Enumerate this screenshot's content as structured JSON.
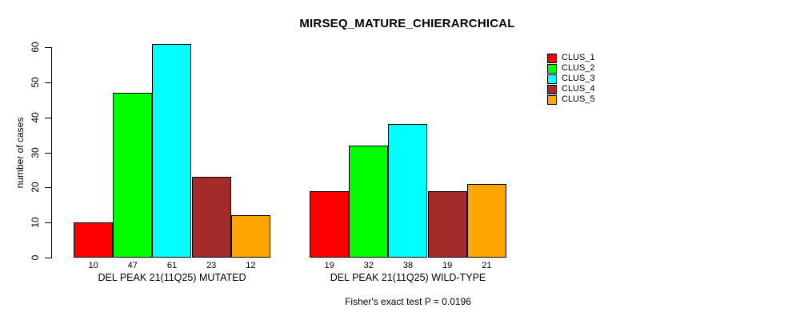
{
  "chart_data": {
    "type": "bar",
    "title": "MIRSEQ_MATURE_CHIERARCHICAL",
    "ylabel": "number of cases",
    "xlabel": "",
    "categories": [
      "DEL PEAK 21(11Q25) MUTATED",
      "DEL PEAK 21(11Q25) WILD-TYPE"
    ],
    "series": [
      {
        "name": "CLUS_1",
        "color": "#ff0000",
        "values": [
          10,
          19
        ]
      },
      {
        "name": "CLUS_2",
        "color": "#00ff00",
        "values": [
          47,
          32
        ]
      },
      {
        "name": "CLUS_3",
        "color": "#00ffff",
        "values": [
          61,
          38
        ]
      },
      {
        "name": "CLUS_4",
        "color": "#a52a2a",
        "values": [
          23,
          19
        ]
      },
      {
        "name": "CLUS_5",
        "color": "#ffa500",
        "values": [
          12,
          21
        ]
      }
    ],
    "yticks": [
      0,
      10,
      20,
      30,
      40,
      50,
      60
    ],
    "ylim": [
      0,
      61
    ],
    "grid": false,
    "bar_value_labels": true,
    "legend_position": "top-right",
    "annotation": "Fisher's exact test P = 0.0196",
    "bar_border_color": "#000000",
    "background_color": "#ffffff"
  }
}
